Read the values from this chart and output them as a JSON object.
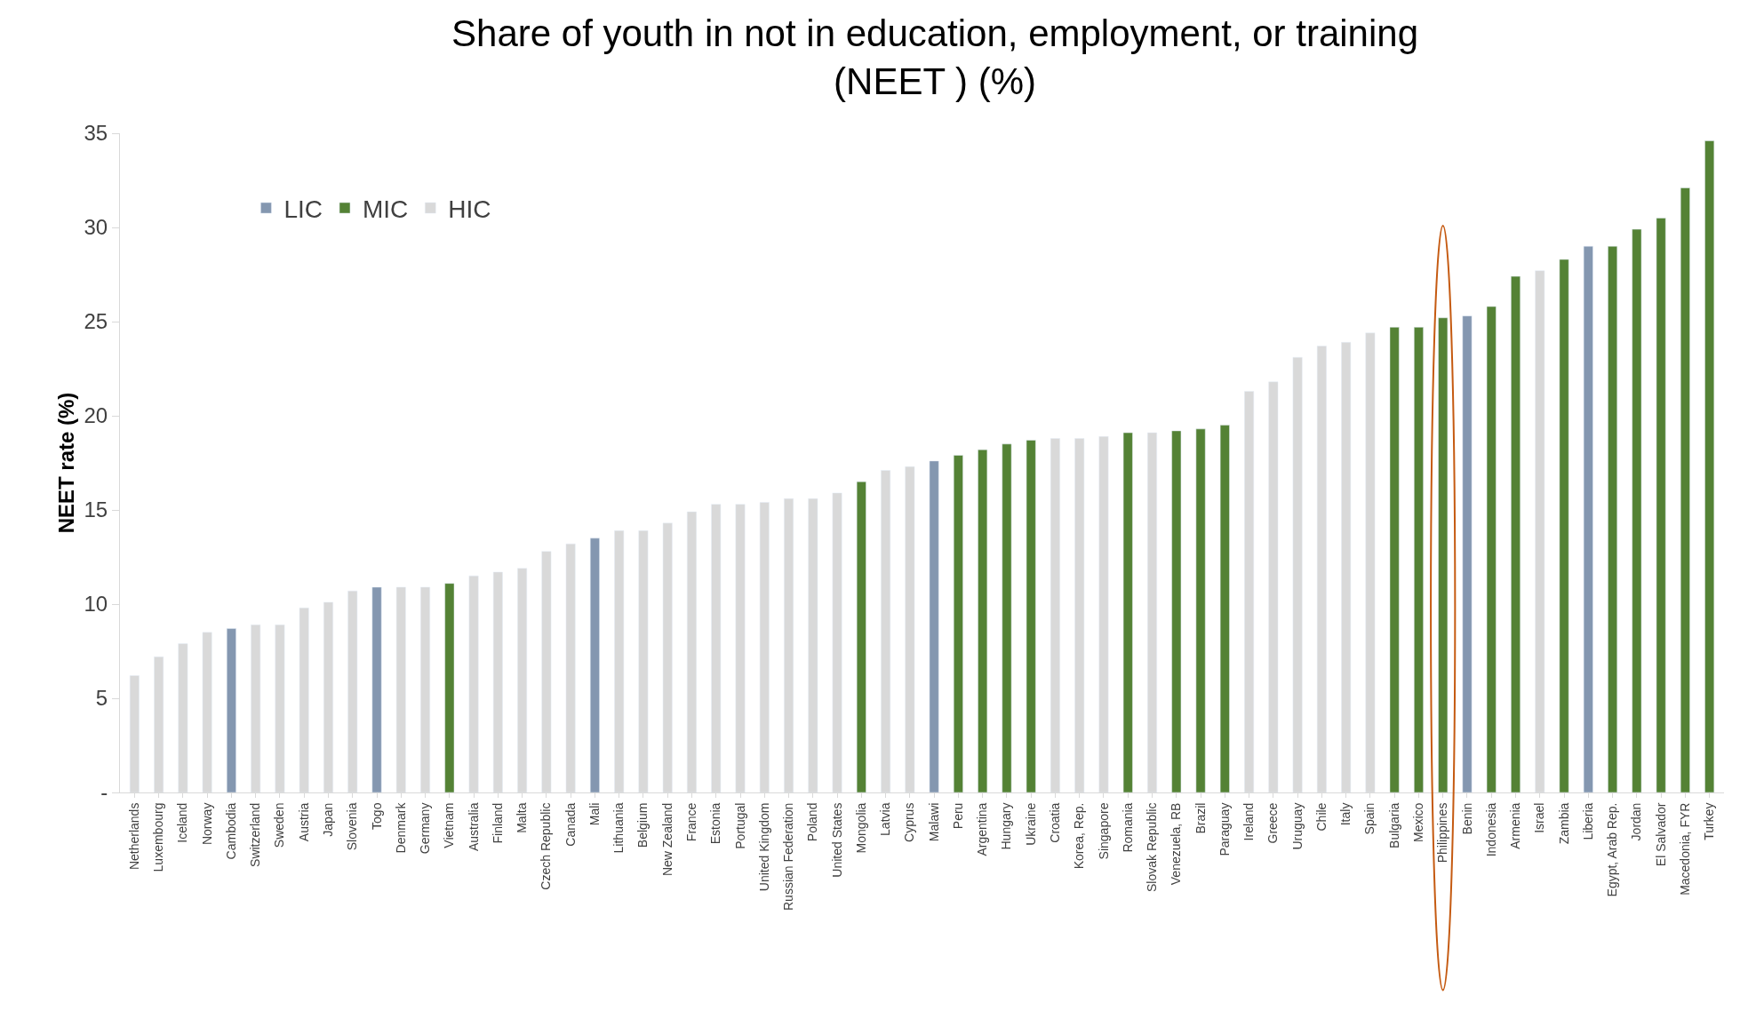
{
  "chart_data": {
    "type": "bar",
    "title": "Share of youth in not in education, employment, or training\n(NEET ) (%)",
    "ylabel": "NEET rate (%)",
    "categories": [
      "Netherlands",
      "Luxembourg",
      "Iceland",
      "Norway",
      "Cambodia",
      "Switzerland",
      "Sweden",
      "Austria",
      "Japan",
      "Slovenia",
      "Togo",
      "Denmark",
      "Germany",
      "Vietnam",
      "Australia",
      "Finland",
      "Malta",
      "Czech Republic",
      "Canada",
      "Mali",
      "Lithuania",
      "Belgium",
      "New Zealand",
      "France",
      "Estonia",
      "Portugal",
      "United Kingdom",
      "Russian Federation",
      "Poland",
      "United States",
      "Mongolia",
      "Latvia",
      "Cyprus",
      "Malawi",
      "Peru",
      "Argentina",
      "Hungary",
      "Ukraine",
      "Croatia",
      "Korea, Rep.",
      "Singapore",
      "Romania",
      "Slovak Republic",
      "Venezuela, RB",
      "Brazil",
      "Paraguay",
      "Ireland",
      "Greece",
      "Uruguay",
      "Chile",
      "Italy",
      "Spain",
      "Bulgaria",
      "Mexico",
      "Philippines",
      "Benin",
      "Indonesia",
      "Armenia",
      "Israel",
      "Zambia",
      "Liberia",
      "Egypt, Arab Rep.",
      "Jordan",
      "El Salvador",
      "Macedonia, FYR",
      "Turkey"
    ],
    "series": [
      {
        "name": "LIC",
        "color": "#8497b0",
        "values": [
          null,
          null,
          null,
          null,
          8.7,
          null,
          null,
          null,
          null,
          null,
          10.9,
          null,
          null,
          null,
          null,
          null,
          null,
          null,
          null,
          13.5,
          null,
          null,
          null,
          null,
          null,
          null,
          null,
          null,
          null,
          null,
          null,
          null,
          null,
          17.6,
          null,
          null,
          null,
          null,
          null,
          null,
          null,
          null,
          null,
          null,
          null,
          null,
          null,
          null,
          null,
          null,
          null,
          null,
          null,
          null,
          null,
          25.3,
          null,
          null,
          null,
          null,
          29.0,
          null,
          null,
          null,
          null,
          null
        ]
      },
      {
        "name": "MIC",
        "color": "#548235",
        "values": [
          null,
          null,
          null,
          null,
          null,
          null,
          null,
          null,
          null,
          null,
          null,
          null,
          null,
          11.1,
          null,
          null,
          null,
          null,
          null,
          null,
          null,
          null,
          null,
          null,
          null,
          null,
          null,
          null,
          null,
          null,
          16.5,
          null,
          null,
          null,
          17.9,
          18.2,
          18.5,
          18.7,
          null,
          null,
          null,
          19.1,
          null,
          19.2,
          19.3,
          19.5,
          null,
          null,
          null,
          null,
          null,
          null,
          24.7,
          24.7,
          25.2,
          null,
          25.8,
          27.4,
          null,
          28.3,
          null,
          29.0,
          29.9,
          30.5,
          32.1,
          34.6
        ]
      },
      {
        "name": "HIC",
        "color": "#d9d9d9",
        "values": [
          6.2,
          7.2,
          7.9,
          8.5,
          null,
          8.9,
          8.9,
          9.8,
          10.1,
          10.7,
          null,
          10.9,
          10.9,
          null,
          11.5,
          11.7,
          11.9,
          12.8,
          13.2,
          null,
          13.9,
          13.9,
          14.3,
          14.9,
          15.3,
          15.3,
          15.4,
          15.6,
          15.6,
          15.9,
          null,
          17.1,
          17.3,
          null,
          null,
          null,
          null,
          null,
          18.8,
          18.8,
          18.9,
          null,
          19.1,
          null,
          null,
          null,
          21.3,
          21.8,
          23.1,
          23.7,
          23.9,
          24.4,
          null,
          null,
          null,
          null,
          null,
          null,
          27.7,
          null,
          null,
          null,
          null,
          null,
          null,
          null
        ]
      }
    ],
    "ylim": [
      0,
      35
    ],
    "yticks": [
      {
        "value": 0,
        "label": "-"
      },
      5,
      10,
      15,
      20,
      25,
      30,
      35
    ],
    "legend": "top left"
  }
}
